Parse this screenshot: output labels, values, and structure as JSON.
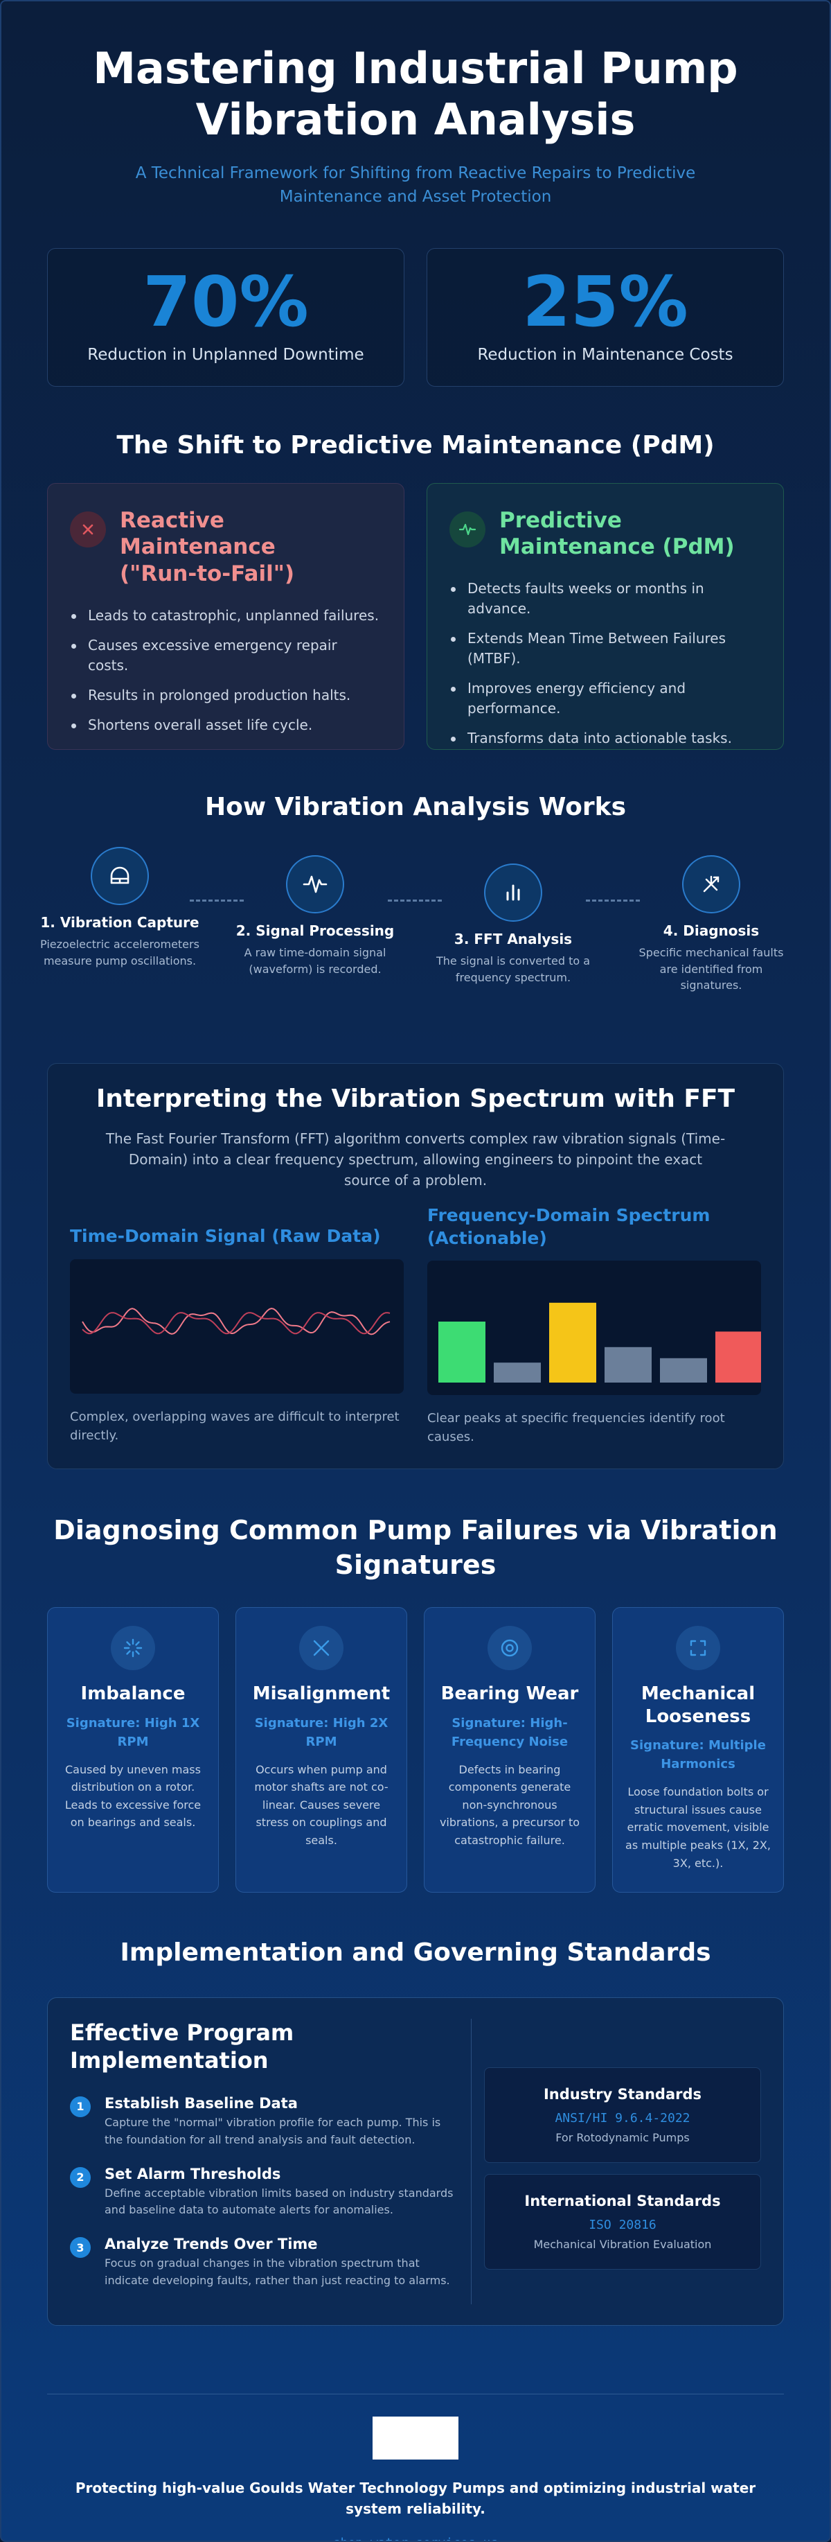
{
  "header": {
    "title_line1": "Mastering Industrial Pump",
    "title_line2": "Vibration Analysis",
    "subtitle_line1": "A Technical Framework for Shifting from Reactive Repairs to Predictive",
    "subtitle_line2": "Maintenance and Asset Protection"
  },
  "stats": [
    {
      "value": "70%",
      "label": "Reduction in Unplanned Downtime"
    },
    {
      "value": "25%",
      "label": "Reduction in Maintenance Costs"
    }
  ],
  "shift": {
    "title": "The Shift to Predictive Maintenance (PdM)",
    "reactive": {
      "icon": "x-icon",
      "title_line1": "Reactive Maintenance",
      "title_line2": "(\"Run-to-Fail\")",
      "items": [
        "Leads to catastrophic, unplanned failures.",
        "Causes excessive emergency repair costs.",
        "Results in prolonged production halts.",
        "Shortens overall asset life cycle."
      ]
    },
    "predictive": {
      "icon": "pulse-icon",
      "title_line1": "Predictive",
      "title_line2": "Maintenance (PdM)",
      "items": [
        "Detects faults weeks or months in advance.",
        "Extends Mean Time Between Failures (MTBF).",
        "Improves energy efficiency and performance.",
        "Transforms data into actionable tasks."
      ]
    }
  },
  "how": {
    "title": "How Vibration Analysis Works",
    "steps": [
      {
        "icon": "sensor-icon",
        "title": "1. Vibration Capture",
        "desc": "Piezoelectric accelerometers measure pump oscillations."
      },
      {
        "icon": "waveform-icon",
        "title": "2. Signal Processing",
        "desc": "A raw time-domain signal (waveform) is recorded."
      },
      {
        "icon": "bar-chart-icon",
        "title": "3. FFT Analysis",
        "desc": "The signal is converted to a frequency spectrum."
      },
      {
        "icon": "diagnosis-icon",
        "title": "4. Diagnosis",
        "desc": "Specific mechanical faults are identified from signatures."
      }
    ]
  },
  "fft": {
    "title": "Interpreting the Vibration Spectrum with FFT",
    "desc": "The Fast Fourier Transform (FFT) algorithm converts complex raw vibration signals (Time-Domain) into a clear frequency spectrum, allowing engineers to pinpoint the exact source of a problem.",
    "time_title": "Time-Domain Signal (Raw Data)",
    "time_note": "Complex, overlapping waves are difficult to interpret directly.",
    "freq_title": "Frequency-Domain Spectrum (Actionable)",
    "freq_note": "Clear peaks at specific frequencies identify root causes.",
    "spectrum_levels": [
      0.55,
      0.18,
      0.72,
      0.32,
      0.22,
      0.46
    ],
    "spectrum_colors": [
      "#3ddc73",
      "#6b7f9a",
      "#f5c518",
      "#6b7f9a",
      "#6b7f9a",
      "#f05a5a"
    ],
    "wave_colors": [
      "#f07a8a",
      "#c0405a"
    ]
  },
  "failures": {
    "title_line1": "Diagnosing Common Pump Failures via Vibration",
    "title_line2": "Signatures",
    "items": [
      {
        "icon": "spark-icon",
        "title": "Imbalance",
        "signature": "Signature: High 1X RPM",
        "desc": "Caused by uneven mass distribution on a rotor. Leads to excessive force on bearings and seals."
      },
      {
        "icon": "cross-icon",
        "title": "Misalignment",
        "signature": "Signature: High 2X RPM",
        "desc": "Occurs when pump and motor shafts are not co-linear. Causes severe stress on couplings and seals."
      },
      {
        "icon": "bearing-icon",
        "title": "Bearing Wear",
        "signature": "Signature: High-Frequency Noise",
        "desc": "Defects in bearing components generate non-synchronous vibrations, a precursor to catastrophic failure."
      },
      {
        "icon": "frame-icon",
        "title": "Mechanical Looseness",
        "signature": "Signature: Multiple Harmonics",
        "desc": "Loose foundation bolts or structural issues cause erratic movement, visible as multiple peaks (1X, 2X, 3X, etc.)."
      }
    ]
  },
  "implementation": {
    "title": "Implementation and Governing Standards",
    "left_title": "Effective Program Implementation",
    "steps": [
      {
        "num": "1",
        "title": "Establish Baseline Data",
        "desc": "Capture the \"normal\" vibration profile for each pump. This is the foundation for all trend analysis and fault detection."
      },
      {
        "num": "2",
        "title": "Set Alarm Thresholds",
        "desc": "Define acceptable vibration limits based on industry standards and baseline data to automate alerts for anomalies."
      },
      {
        "num": "3",
        "title": "Analyze Trends Over Time",
        "desc": "Focus on gradual changes in the vibration spectrum that indicate developing faults, rather than just reacting to alarms."
      }
    ],
    "standards": [
      {
        "title": "Industry Standards",
        "code": "ANSI/HI 9.6.4-2022",
        "desc": "For Rotodynamic Pumps"
      },
      {
        "title": "International Standards",
        "code": "ISO 20816",
        "desc": "Mechanical Vibration Evaluation"
      }
    ]
  },
  "footer": {
    "text_line1": "Protecting high-value Goulds Water Technology Pumps and optimizing industrial water",
    "text_line2": "system reliability.",
    "url": "shop.water-services.us"
  },
  "colors": {
    "accent": "#1a84d6",
    "reactive": "#f08f8f",
    "predictive": "#6fe3a0"
  }
}
